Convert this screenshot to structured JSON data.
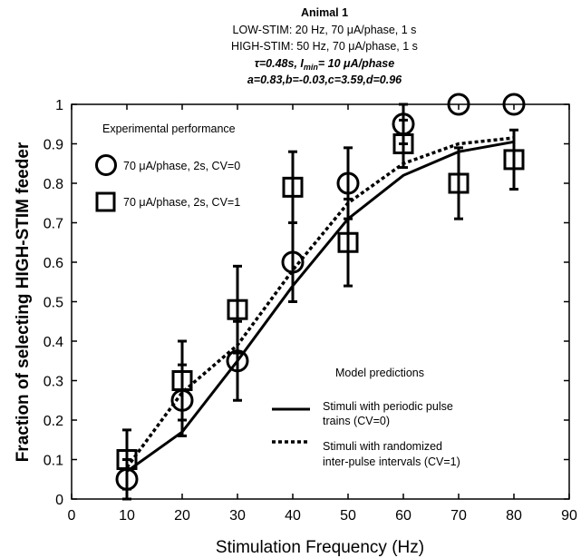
{
  "chart_data": {
    "type": "line",
    "header": {
      "title": "Animal 1",
      "line2": "LOW-STIM:  20 Hz, 70 μA/phase, 1 s",
      "line3": "HIGH-STIM: 50 Hz, 70 μA/phase, 1 s",
      "line4_tau": "τ=0.48s, I",
      "line4_sub": "min",
      "line4_rest": "= 10 μA/phase",
      "line5": "a=0.83,b=-0.03,c=3.59,d=0.96"
    },
    "xlabel": "Stimulation Frequency (Hz)",
    "ylabel": "Fraction of selecting HIGH-STIM feeder",
    "xlim": [
      0,
      90
    ],
    "ylim": [
      0,
      1
    ],
    "xticks": [
      "0",
      "10",
      "20",
      "30",
      "40",
      "50",
      "60",
      "70",
      "80",
      "90"
    ],
    "yticks": [
      "0",
      "0.1",
      "0.2",
      "0.3",
      "0.4",
      "0.5",
      "0.6",
      "0.7",
      "0.8",
      "0.9",
      "1"
    ],
    "grid": false,
    "legend_experimental": {
      "title": "Experimental performance",
      "entries": [
        "70 μA/phase, 2s, CV=0",
        "70 μA/phase, 2s, CV=1"
      ]
    },
    "legend_model": {
      "title": "Model predictions",
      "solid": [
        "Stimuli with periodic pulse",
        "trains (CV=0)"
      ],
      "dotted": [
        "Stimuli with randomized",
        "inter-pulse intervals (CV=1)"
      ]
    },
    "series": [
      {
        "marker": "circle",
        "x": [
          10,
          20,
          30,
          40,
          50,
          60,
          70,
          80
        ],
        "y": [
          0.05,
          0.25,
          0.35,
          0.6,
          0.8,
          0.95,
          1.0,
          1.0
        ],
        "err": [
          0.05,
          0.09,
          0.1,
          0.1,
          0.09,
          0.05,
          0.0,
          0.0
        ]
      },
      {
        "marker": "square",
        "x": [
          10,
          20,
          30,
          40,
          50,
          60,
          70,
          80
        ],
        "y": [
          0.1,
          0.3,
          0.48,
          0.79,
          0.65,
          0.9,
          0.8,
          0.86
        ],
        "err": [
          0.075,
          0.1,
          0.11,
          0.09,
          0.11,
          0.06,
          0.09,
          0.075
        ]
      },
      {
        "style": "solid",
        "x": [
          10,
          20,
          30,
          40,
          50,
          60,
          70,
          80
        ],
        "y": [
          0.07,
          0.17,
          0.35,
          0.54,
          0.71,
          0.82,
          0.88,
          0.905
        ]
      },
      {
        "style": "dotted",
        "x": [
          10,
          20,
          30,
          40,
          50,
          60,
          70,
          80
        ],
        "y": [
          0.08,
          0.27,
          0.39,
          0.58,
          0.75,
          0.85,
          0.9,
          0.915
        ]
      }
    ]
  }
}
